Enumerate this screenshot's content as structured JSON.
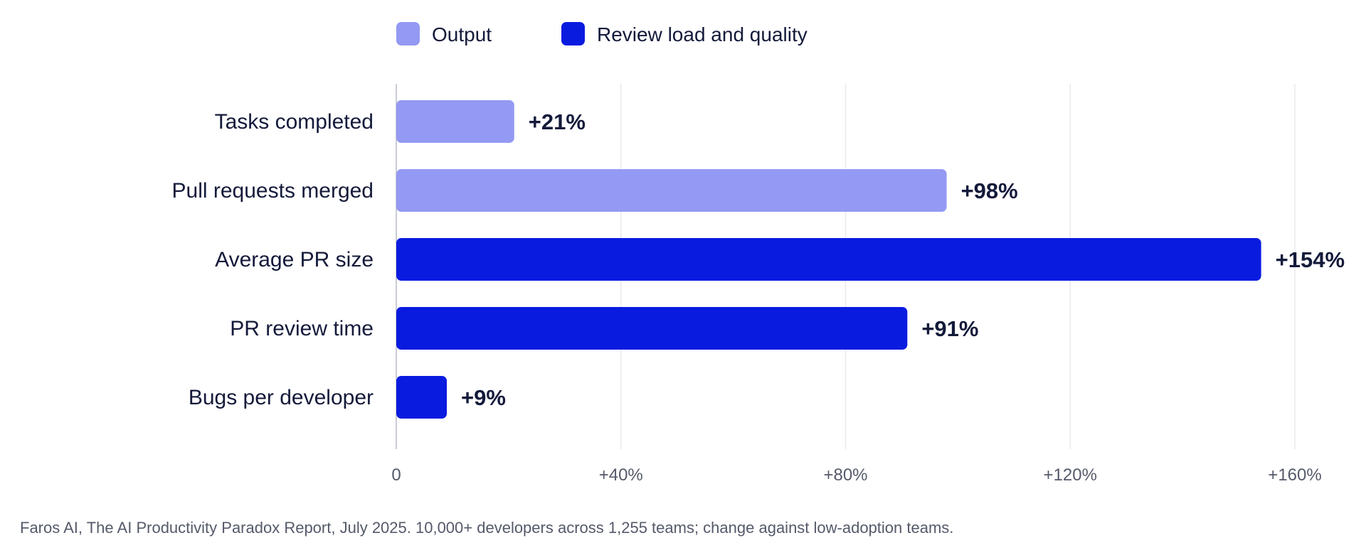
{
  "chart_data": {
    "type": "bar",
    "orientation": "horizontal",
    "categories": [
      "Tasks completed",
      "Pull requests merged",
      "Average PR size",
      "PR review time",
      "Bugs per developer"
    ],
    "values": [
      21,
      98,
      154,
      91,
      9
    ],
    "value_labels": [
      "+21%",
      "+98%",
      "+154%",
      "+91%",
      "+9%"
    ],
    "groups": [
      "Output",
      "Output",
      "Review load and quality",
      "Review load and quality",
      "Review load and quality"
    ],
    "legend": [
      {
        "name": "Output",
        "color": "#9499f3"
      },
      {
        "name": "Review load and quality",
        "color": "#0a1be0"
      }
    ],
    "legend_placement": "top",
    "xlim": [
      0,
      160
    ],
    "xticks": [
      0,
      40,
      80,
      120,
      160
    ],
    "xtick_labels": [
      "0",
      "+40%",
      "+80%",
      "+120%",
      "+160%"
    ],
    "grid": true,
    "source": "Faros AI, The AI Productivity Paradox Report, July 2025. 10,000+ developers across 1,255 teams; change against low-adoption teams."
  }
}
